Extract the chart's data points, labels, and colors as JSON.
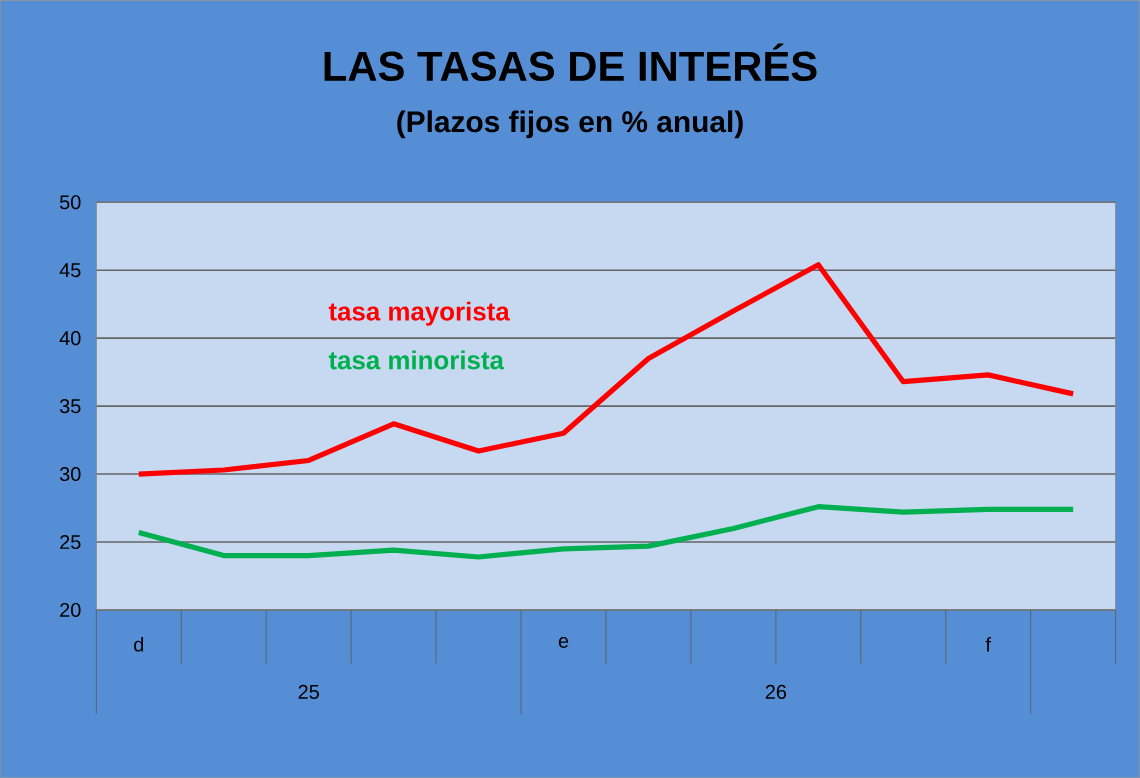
{
  "chart_data": {
    "type": "line",
    "title": "LAS TASAS DE INTERÉS",
    "subtitle": "(Plazos fijos en % anual)",
    "categories": [
      "d",
      null,
      null,
      null,
      null,
      "e",
      null,
      null,
      null,
      null,
      "f",
      null
    ],
    "series": [
      {
        "name": "tasa mayorista",
        "color": "#ff0000",
        "values": [
          30,
          30.3,
          31,
          33.7,
          31.7,
          33,
          38.5,
          42,
          45.4,
          36.8,
          37.3,
          35.9
        ]
      },
      {
        "name": "tasa minorista",
        "color": "#00b050",
        "values": [
          25.7,
          24,
          24,
          24.4,
          23.9,
          24.5,
          24.7,
          26,
          27.6,
          27.2,
          27.4,
          27.4
        ]
      }
    ],
    "ylim": [
      20,
      50
    ],
    "yticks": [
      20,
      25,
      30,
      35,
      40,
      45,
      50
    ],
    "grid": "y",
    "legend": false,
    "marker": "none",
    "line_style": "solid",
    "annotations": [
      "25",
      "26"
    ]
  }
}
